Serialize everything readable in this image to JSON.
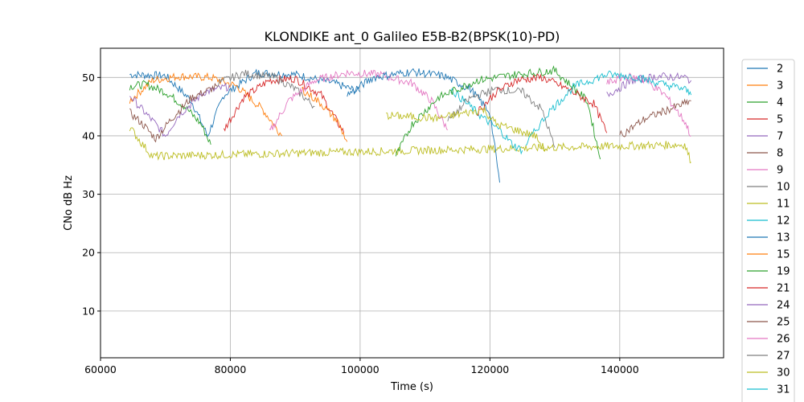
{
  "chart_data": {
    "type": "line",
    "title": "KLONDIKE ant_0 Galileo E5B-B2(BPSK(10)-PD)",
    "xlabel": "Time (s)",
    "ylabel": "CNo dB Hz",
    "xlim": [
      60000,
      156000
    ],
    "ylim": [
      2,
      55
    ],
    "xticks": [
      60000,
      80000,
      100000,
      120000,
      140000
    ],
    "xtick_labels": [
      "60000",
      "80000",
      "100000",
      "120000",
      "140000"
    ],
    "yticks": [
      10,
      20,
      30,
      40,
      50
    ],
    "ytick_labels": [
      "10",
      "20",
      "30",
      "40",
      "50"
    ],
    "grid": true,
    "legend_position": "right, outside plot",
    "series": [
      {
        "name": "2",
        "color": "#1f77b4",
        "x": [
          64500,
          70000,
          74000,
          76500,
          79000,
          84000,
          90000,
          96000,
          100000
        ],
        "y": [
          50.5,
          50.3,
          46,
          40,
          47,
          50.8,
          50.5,
          49,
          47.5
        ]
      },
      {
        "name": "3",
        "color": "#ff7f0e",
        "x": [
          64500,
          68000,
          72000,
          77000,
          81000,
          85000,
          88000
        ],
        "y": [
          46,
          49.5,
          50.2,
          50,
          48.5,
          44.5,
          40
        ]
      },
      {
        "name": "4",
        "color": "#2ca02c",
        "x": [
          64500,
          67000,
          70000,
          73000,
          75500,
          77000
        ],
        "y": [
          48.5,
          48.8,
          47.5,
          45,
          42,
          38.5
        ]
      },
      {
        "name": "5",
        "color": "#d62728",
        "x": [
          79000,
          82000,
          86000,
          90000,
          94000,
          97500
        ],
        "y": [
          41,
          46.5,
          49.5,
          49.8,
          47,
          40.5
        ]
      },
      {
        "name": "7",
        "color": "#9467bd",
        "x": [
          64500,
          66000,
          68500,
          70000,
          72000,
          76000,
          80000
        ],
        "y": [
          47,
          45,
          42,
          40,
          43.5,
          47.5,
          48.5
        ]
      },
      {
        "name": "8",
        "color": "#8c564b",
        "x": [
          64500,
          66500,
          68500,
          71000,
          74000,
          78000
        ],
        "y": [
          44,
          42,
          39.5,
          43,
          46.5,
          48.5
        ]
      },
      {
        "name": "9",
        "color": "#e377c2",
        "x": [
          86000,
          89000,
          93000,
          98000,
          103000,
          108000,
          111000,
          113500
        ],
        "y": [
          40.5,
          46,
          49.5,
          50.8,
          50.5,
          49,
          46,
          41
        ]
      },
      {
        "name": "10",
        "color": "#7f7f7f",
        "x": [
          78000,
          82000,
          87000,
          90000,
          93000
        ],
        "y": [
          49,
          50.7,
          50,
          48,
          45
        ]
      },
      {
        "name": "11",
        "color": "#bcbd22",
        "x": [
          64500,
          66500,
          68000,
          150000,
          151000
        ],
        "y": [
          41.5,
          38.5,
          36.5,
          38.5,
          35.5
        ]
      },
      {
        "name": "12",
        "color": "#17becf",
        "x": [
          114000,
          117000,
          119000,
          121500,
          123500,
          125000
        ],
        "y": [
          48,
          45,
          43,
          41,
          38.5,
          37.5
        ]
      },
      {
        "name": "13",
        "color": "#1f77b4",
        "x": [
          98000,
          102000,
          108000,
          113000,
          117000,
          120000,
          121500
        ],
        "y": [
          47,
          50,
          51,
          50.2,
          48,
          44,
          32
        ]
      },
      {
        "name": "15",
        "color": "#ff7f0e",
        "x": [
          91000,
          94000,
          96500,
          98000
        ],
        "y": [
          48,
          45.5,
          42.5,
          39
        ]
      },
      {
        "name": "19",
        "color": "#2ca02c",
        "x": [
          105500,
          108000,
          112000,
          118000,
          124000,
          130000,
          135000,
          137000
        ],
        "y": [
          36.5,
          42,
          46.5,
          49.5,
          50.5,
          51.2,
          46,
          36
        ]
      },
      {
        "name": "21",
        "color": "#d62728",
        "x": [
          118000,
          121000,
          124000,
          128000,
          132000,
          136000,
          138000
        ],
        "y": [
          44,
          47.5,
          49.5,
          50,
          48,
          45.5,
          40.5
        ]
      },
      {
        "name": "24",
        "color": "#9467bd",
        "x": [
          138000,
          142000,
          146000,
          150000,
          151000
        ],
        "y": [
          47,
          49.5,
          50.2,
          50,
          49.5
        ]
      },
      {
        "name": "25",
        "color": "#8c564b",
        "x": [
          140000,
          144000,
          147500,
          150000,
          151000
        ],
        "y": [
          40,
          43,
          44.5,
          45.5,
          46
        ]
      },
      {
        "name": "26",
        "color": "#e377c2",
        "x": [
          138000,
          141000,
          144000,
          147000,
          150000,
          151000
        ],
        "y": [
          49,
          50.2,
          49.5,
          47,
          42.5,
          40
        ]
      },
      {
        "name": "27",
        "color": "#7f7f7f",
        "x": [
          113500,
          117000,
          121000,
          125000,
          128000,
          130000
        ],
        "y": [
          42.5,
          46.5,
          48,
          47.5,
          44.5,
          38
        ]
      },
      {
        "name": "30",
        "color": "#bcbd22",
        "x": [
          104000,
          112000,
          119000,
          121000,
          127000,
          128500
        ],
        "y": [
          43.5,
          43,
          44.5,
          42,
          40,
          37.5
        ]
      },
      {
        "name": "31",
        "color": "#17becf",
        "x": [
          125500,
          129000,
          133000,
          138000,
          142000,
          146000,
          150000,
          151000
        ],
        "y": [
          38.5,
          44,
          48.5,
          50.5,
          50.2,
          49,
          48,
          47
        ]
      }
    ]
  }
}
